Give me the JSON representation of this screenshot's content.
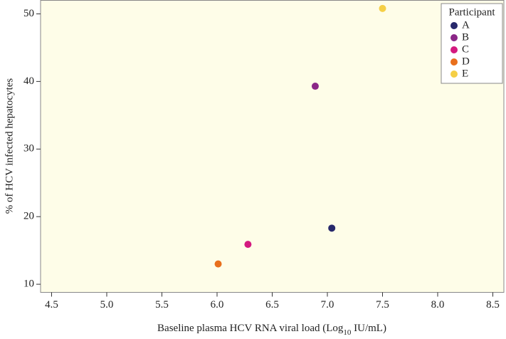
{
  "chart_data": {
    "type": "scatter",
    "x_label": "Baseline plasma HCV RNA viral load (Log",
    "x_label_sub": "10",
    "x_label_end": " IU/mL)",
    "y_label": "% of HCV infected hepatocytes",
    "legend_title": "Participant",
    "legend": "top-right",
    "xlim": [
      4.4,
      8.6
    ],
    "xticks": [
      4.5,
      {
        "value": 5,
        "label": "5.0"
      },
      5.5,
      {
        "value": 6,
        "label": "6.0"
      },
      6.5,
      {
        "value": 7,
        "label": "7.0"
      },
      7.5,
      {
        "value": 8,
        "label": "8.0"
      },
      8.5
    ],
    "ylim": [
      8.8,
      52
    ],
    "yticks": [
      10,
      20,
      30,
      40,
      50
    ],
    "series": [
      {
        "name": "A",
        "color": "#27286b",
        "x": [
          7.04
        ],
        "values": [
          18.3
        ]
      },
      {
        "name": "B",
        "color": "#8b2787",
        "x": [
          6.89
        ],
        "values": [
          39.3
        ]
      },
      {
        "name": "C",
        "color": "#d41a7f",
        "x": [
          6.28
        ],
        "values": [
          15.9
        ]
      },
      {
        "name": "D",
        "color": "#e86f1c",
        "x": [
          6.01
        ],
        "values": [
          13.0
        ]
      },
      {
        "name": "E",
        "color": "#f5cf45",
        "x": [
          7.5
        ],
        "values": [
          50.8
        ]
      }
    ]
  }
}
